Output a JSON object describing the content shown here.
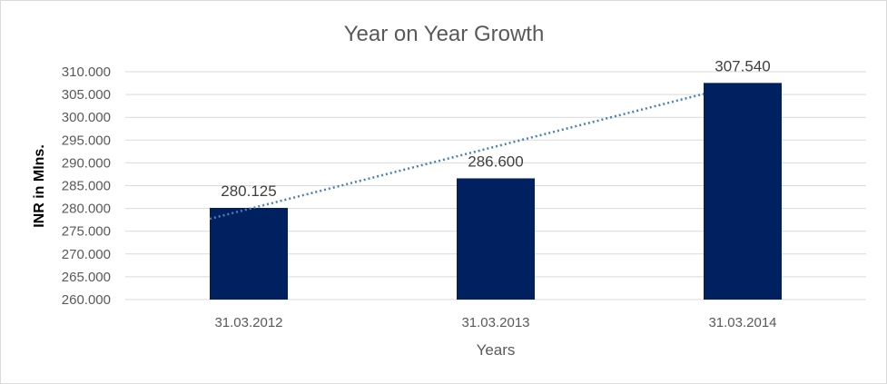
{
  "chart_data": {
    "type": "bar",
    "title": "Year on Year Growth",
    "xlabel": "Years",
    "ylabel": "INR in Mlns.",
    "categories": [
      "31.03.2012",
      "31.03.2013",
      "31.03.2014"
    ],
    "values": [
      280.125,
      286.6,
      307.54
    ],
    "data_labels": [
      "280.125",
      "286.600",
      "307.540"
    ],
    "ylim": [
      260,
      310
    ],
    "yticks": [
      260,
      265,
      270,
      275,
      280,
      285,
      290,
      295,
      300,
      305,
      310
    ],
    "ytick_labels": [
      "260.000",
      "265.000",
      "270.000",
      "275.000",
      "280.000",
      "285.000",
      "290.000",
      "295.000",
      "300.000",
      "305.000",
      "310.000"
    ],
    "grid": true,
    "legend": "none",
    "trendline": {
      "type": "linear",
      "style": "dotted",
      "color": "#4a7fb8"
    },
    "bar_color": "#002060"
  }
}
